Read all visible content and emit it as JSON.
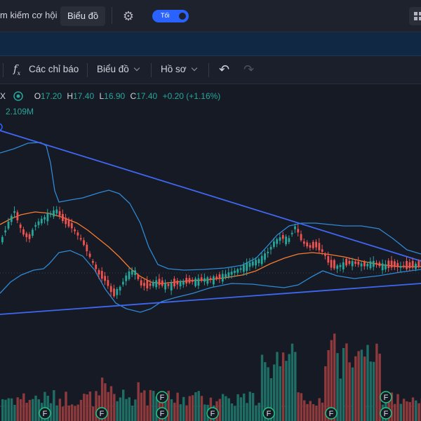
{
  "topbar": {
    "search_label": "m kiếm cơ hội",
    "chart_label": "Biểu đồ",
    "theme_label": "Tối",
    "icons": [
      "gear-icon",
      "grid-icon"
    ]
  },
  "toolbar": {
    "indicators_label": "Các chỉ báo",
    "chart_label": "Biểu đồ",
    "profile_label": "Hồ sơ",
    "icons": [
      "fx-icon",
      "undo-icon",
      "redo-icon",
      "chevron-down-icon"
    ]
  },
  "legend": {
    "symbol_fragment": "X",
    "open_key": "O",
    "open": "17.20",
    "high_key": "H",
    "high": "17.40",
    "low_key": "L",
    "low": "16.90",
    "close_key": "C",
    "close": "17.40",
    "change": "+0.20 (+1.16%)",
    "volume": "2.109M",
    "up_color": "#26a69a",
    "down_color": "#ef5350"
  },
  "markers": {
    "label": "F"
  }
}
